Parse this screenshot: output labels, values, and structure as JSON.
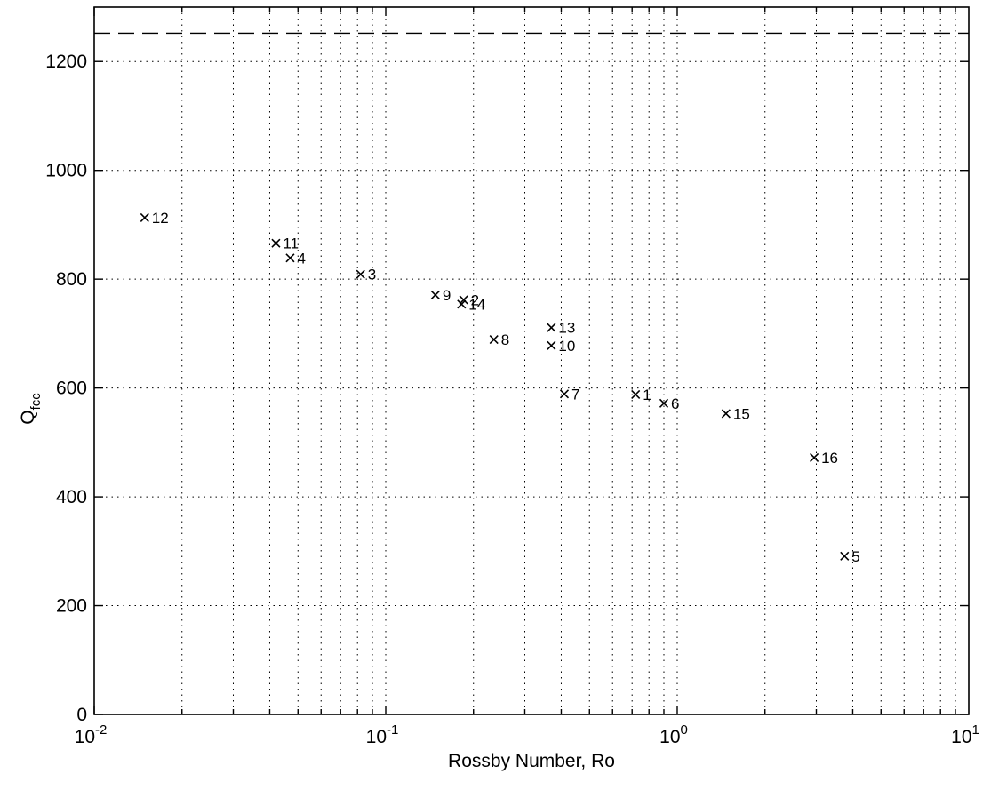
{
  "chart_data": {
    "type": "scatter",
    "title": "",
    "xlabel": "Rossby Number, Ro",
    "ylabel_main": "Q",
    "ylabel_sub": "fcc",
    "x_scale": "log",
    "xlim": [
      0.01,
      10
    ],
    "ylim": [
      0,
      1300
    ],
    "grid": true,
    "grid_style": "dotted",
    "x_ticks": [
      {
        "value": 0.01,
        "base": "10",
        "exp": "-2"
      },
      {
        "value": 0.1,
        "base": "10",
        "exp": "-1"
      },
      {
        "value": 1,
        "base": "10",
        "exp": "0"
      },
      {
        "value": 10,
        "base": "10",
        "exp": "1"
      }
    ],
    "y_ticks": [
      {
        "value": 0,
        "label": "0"
      },
      {
        "value": 200,
        "label": "200"
      },
      {
        "value": 400,
        "label": "400"
      },
      {
        "value": 600,
        "label": "600"
      },
      {
        "value": 800,
        "label": "800"
      },
      {
        "value": 1000,
        "label": "1000"
      },
      {
        "value": 1200,
        "label": "1200"
      }
    ],
    "reference_line": {
      "y": 1252,
      "style": "dashed"
    },
    "marker": "x",
    "colors": {
      "points": "#000000",
      "axes": "#000000",
      "grid": "#000000"
    },
    "points": [
      {
        "label": "1",
        "x": 0.72,
        "y": 588
      },
      {
        "label": "2",
        "x": 0.185,
        "y": 762
      },
      {
        "label": "3",
        "x": 0.082,
        "y": 809
      },
      {
        "label": "4",
        "x": 0.047,
        "y": 839
      },
      {
        "label": "5",
        "x": 3.75,
        "y": 291
      },
      {
        "label": "6",
        "x": 0.9,
        "y": 572
      },
      {
        "label": "7",
        "x": 0.41,
        "y": 589
      },
      {
        "label": "8",
        "x": 0.235,
        "y": 689
      },
      {
        "label": "9",
        "x": 0.148,
        "y": 771
      },
      {
        "label": "10",
        "x": 0.37,
        "y": 678
      },
      {
        "label": "11",
        "x": 0.042,
        "y": 866
      },
      {
        "label": "12",
        "x": 0.0149,
        "y": 913
      },
      {
        "label": "13",
        "x": 0.37,
        "y": 711
      },
      {
        "label": "14",
        "x": 0.182,
        "y": 754
      },
      {
        "label": "15",
        "x": 1.47,
        "y": 553
      },
      {
        "label": "16",
        "x": 2.95,
        "y": 472
      }
    ]
  }
}
